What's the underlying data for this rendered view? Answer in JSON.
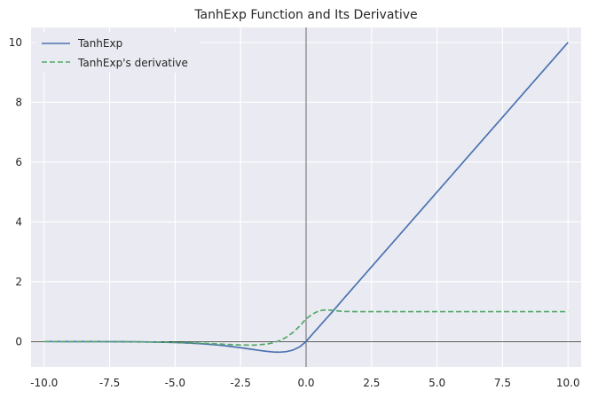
{
  "chart_data": {
    "type": "line",
    "title": "TanhExp Function and Its Derivative",
    "xlabel": "",
    "ylabel": "",
    "xlim": [
      -10.5,
      10.5
    ],
    "ylim": [
      -0.85,
      10.5
    ],
    "xticks": [
      -10.0,
      -7.5,
      -5.0,
      -2.5,
      0.0,
      2.5,
      5.0,
      7.5,
      10.0
    ],
    "xtick_labels": [
      "-10.0",
      "-7.5",
      "-5.0",
      "-2.5",
      "0.0",
      "2.5",
      "5.0",
      "7.5",
      "10.0"
    ],
    "yticks": [
      0,
      2,
      4,
      6,
      8,
      10
    ],
    "ytick_labels": [
      "0",
      "2",
      "4",
      "6",
      "8",
      "10"
    ],
    "grid": true,
    "legend_position": "top-left",
    "reference_lines": {
      "x": 0,
      "y": 0
    },
    "colors": {
      "background": "#eaeaf2",
      "grid": "#ffffff",
      "refline": "#000000"
    },
    "series": [
      {
        "name": "TanhExp",
        "color": "#4c72b0",
        "linestyle": "solid",
        "x": [
          -10,
          -9,
          -8,
          -7,
          -6,
          -5,
          -4.5,
          -4,
          -3.5,
          -3,
          -2.5,
          -2,
          -1.75,
          -1.5,
          -1.25,
          -1,
          -0.75,
          -0.5,
          -0.25,
          0,
          0.25,
          0.5,
          0.75,
          1,
          1.5,
          2,
          3,
          4,
          5,
          6,
          7,
          8,
          9,
          10
        ],
        "y": [
          -0.0005,
          -0.0011,
          -0.0027,
          -0.0064,
          -0.0149,
          -0.0337,
          -0.05,
          -0.0733,
          -0.1056,
          -0.149,
          -0.2049,
          -0.269,
          -0.3005,
          -0.3285,
          -0.3488,
          -0.355,
          -0.3375,
          -0.2843,
          -0.1806,
          0,
          0.2571,
          0.5,
          0.7476,
          0.9913,
          1.4997,
          2.0,
          3.0,
          4.0,
          5.0,
          6.0,
          7.0,
          8.0,
          9.0,
          10.0
        ]
      },
      {
        "name": "TanhExp's derivative",
        "color": "#55a868",
        "linestyle": "dashed",
        "x": [
          -10,
          -9,
          -8,
          -7,
          -6,
          -5,
          -4.5,
          -4,
          -3.5,
          -3,
          -2.5,
          -2,
          -1.5,
          -1.25,
          -1,
          -0.75,
          -0.5,
          -0.25,
          0,
          0.25,
          0.5,
          0.75,
          1,
          1.25,
          1.5,
          2,
          3,
          4,
          5,
          6,
          7,
          8,
          9,
          10
        ],
        "y": [
          -0.0004,
          -0.001,
          -0.0023,
          -0.0055,
          -0.0124,
          -0.027,
          -0.039,
          -0.0549,
          -0.0746,
          -0.0964,
          -0.1154,
          -0.1199,
          -0.0847,
          -0.0383,
          0.0324,
          0.1471,
          0.3056,
          0.509,
          0.7616,
          0.922,
          1.03,
          1.06,
          1.044,
          1.02,
          1.005,
          1.0,
          1.0,
          1.0,
          1.0,
          1.0,
          1.0,
          1.0,
          1.0,
          1.0
        ]
      }
    ]
  }
}
